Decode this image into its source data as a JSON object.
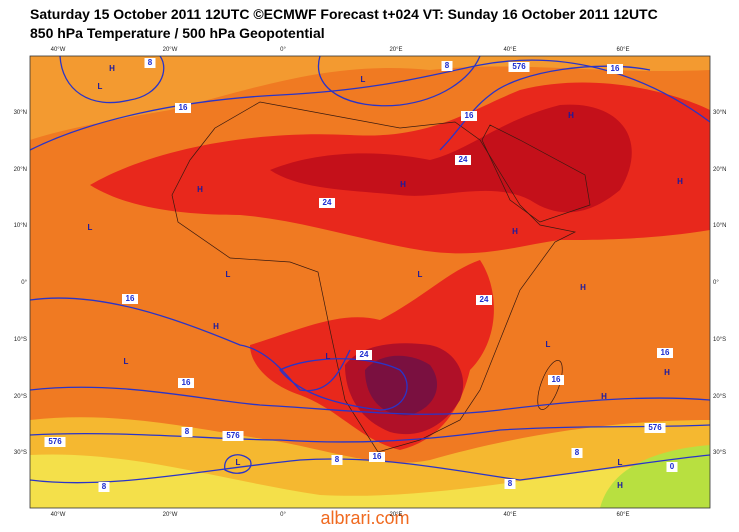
{
  "header": {
    "title": "Saturday 15 October 2011 12UTC ©ECMWF Forecast t+024 VT: Sunday 16 October 2011 12UTC",
    "subtitle": "850 hPa Temperature / 500 hPa Geopotential"
  },
  "axes": {
    "longitudes": [
      "40°W",
      "20°W",
      "0°",
      "20°E",
      "40°E",
      "60°E"
    ],
    "latitudes": [
      "30°N",
      "20°N",
      "10°N",
      "0°",
      "10°S",
      "20°S",
      "30°S"
    ]
  },
  "pressure_centers": [
    "H",
    "L",
    "L",
    "H",
    "H",
    "H",
    "H",
    "L",
    "L",
    "L",
    "H",
    "L",
    "L",
    "H",
    "H",
    "H",
    "L",
    "L",
    "H",
    "H",
    "L"
  ],
  "contour_labels": [
    "8",
    "8",
    "576",
    "16",
    "16",
    "16",
    "24",
    "24",
    "16",
    "24",
    "24",
    "16",
    "16",
    "16",
    "8",
    "576",
    "576",
    "576",
    "8",
    "16",
    "8",
    "0",
    "8",
    "8"
  ],
  "watermark": "albrari.com"
}
